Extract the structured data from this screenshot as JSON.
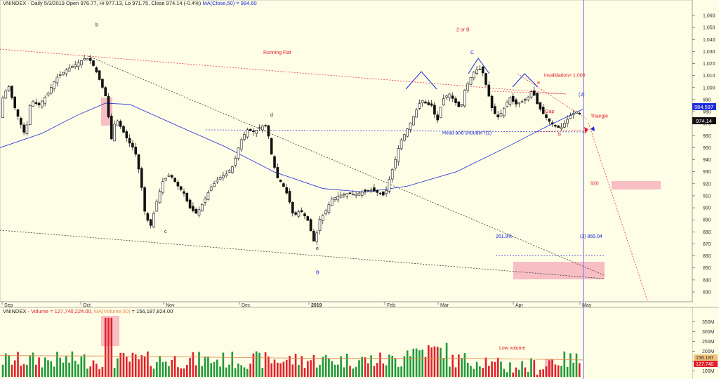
{
  "window": {
    "price_header": {
      "symbol": "VNINDEX",
      "summary": " - Daily 5/3/2019 Open 976.77, Hi 977.13, Lo 971.75, Close 974.14 (-0.4%)",
      "ma_label": "MA(Close,50) = 984.60"
    },
    "volume_header": {
      "symbol": "VNINDEX",
      "vol_label": " - Volume = 127,740,224.00, ",
      "ma_label": "MA(Volume,50)",
      "ma_value": " = 156,187,824.00"
    },
    "price_tags": {
      "ma": "984.597",
      "close": "974.14"
    },
    "volume_tags": {
      "ma": "156.187",
      "last": "127.740"
    }
  },
  "chart_data": {
    "type": "candlestick",
    "price_axis": {
      "ylim": [
        823,
        1067
      ],
      "ticks": [
        830,
        840,
        850,
        860,
        870,
        880,
        890,
        900,
        910,
        920,
        930,
        940,
        950,
        960,
        970,
        980,
        990,
        1000,
        1010,
        1020,
        1030,
        1040,
        1050,
        1060
      ],
      "tick_labels": [
        "830",
        "840",
        "850",
        "860",
        "870",
        "880",
        "890",
        "900",
        "910",
        "920",
        "930",
        "940",
        "950",
        "960",
        "970",
        "980",
        "990",
        "1,000",
        "1,010",
        "1,020",
        "1,030",
        "1,040",
        "1,050",
        "1,060"
      ]
    },
    "volume_axis": {
      "ylim": [
        70,
        380
      ],
      "ticks": [
        100,
        150,
        200,
        250,
        300,
        350
      ],
      "tick_labels": [
        "100M",
        "150M",
        "200M",
        "250M",
        "300M",
        "350M"
      ]
    },
    "x_labels": [
      {
        "label": "Sep",
        "x": 3
      },
      {
        "label": "Oct",
        "x": 115
      },
      {
        "label": "Nov",
        "x": 233
      },
      {
        "label": "Dec",
        "x": 341
      },
      {
        "label": "2019",
        "x": 440
      },
      {
        "label": "Feb",
        "x": 548
      },
      {
        "label": "Mar",
        "x": 624
      },
      {
        "label": "Apr",
        "x": 731
      },
      {
        "label": "May",
        "x": 826
      }
    ],
    "ma_price": [
      [
        0,
        950
      ],
      [
        60,
        962
      ],
      [
        110,
        977
      ],
      [
        150,
        987
      ],
      [
        185,
        986
      ],
      [
        250,
        969
      ],
      [
        320,
        951
      ],
      [
        390,
        930
      ],
      [
        460,
        916
      ],
      [
        520,
        913
      ],
      [
        580,
        918
      ],
      [
        650,
        930
      ],
      [
        720,
        950
      ],
      [
        780,
        968
      ],
      [
        830,
        982
      ]
    ],
    "ma_volume": [
      [
        0,
        178
      ],
      [
        150,
        176
      ],
      [
        300,
        170
      ],
      [
        450,
        164
      ],
      [
        600,
        165
      ],
      [
        700,
        163
      ],
      [
        830,
        156
      ]
    ],
    "annotations": [
      {
        "text": "b",
        "x": 136,
        "y": 1051,
        "color": "dark"
      },
      {
        "text": "2 or B",
        "x": 650,
        "y": 1047,
        "color": "red"
      },
      {
        "text": "Running Flat",
        "x": 375,
        "y": 1028,
        "color": "red"
      },
      {
        "text": "C",
        "x": 670,
        "y": 1028,
        "color": "blue"
      },
      {
        "text": "invalidation> 1,000",
        "x": 775,
        "y": 1009,
        "color": "red"
      },
      {
        "text": "a",
        "x": 765,
        "y": 1003,
        "color": "red"
      },
      {
        "text": "(2)",
        "x": 824,
        "y": 993,
        "color": "blue"
      },
      {
        "text": "d",
        "x": 385,
        "y": 976,
        "color": "dark"
      },
      {
        "text": "Gap",
        "x": 776,
        "y": 979,
        "color": "red"
      },
      {
        "text": "Triangle",
        "x": 841,
        "y": 975,
        "color": "red"
      },
      {
        "text": "Head and shouder?(1)",
        "x": 630,
        "y": 961,
        "color": "blue"
      },
      {
        "text": "b",
        "x": 795,
        "y": 960,
        "color": "red"
      },
      {
        "text": "d",
        "x": 831,
        "y": 962,
        "color": "red"
      },
      {
        "text": "920",
        "x": 841,
        "y": 919,
        "color": "red"
      },
      {
        "text": "c",
        "x": 234,
        "y": 879,
        "color": "dark"
      },
      {
        "text": "261.8%",
        "x": 706,
        "y": 875,
        "color": "blue"
      },
      {
        "text": "(3) 865.04",
        "x": 826,
        "y": 875,
        "color": "blue"
      },
      {
        "text": "e",
        "x": 450,
        "y": 865,
        "color": "dark"
      },
      {
        "text": "B",
        "x": 450,
        "y": 845,
        "color": "blue"
      },
      {
        "text": "Low volume",
        "x": 711,
        "y": 209,
        "color": "red",
        "panel": "volume"
      }
    ]
  }
}
